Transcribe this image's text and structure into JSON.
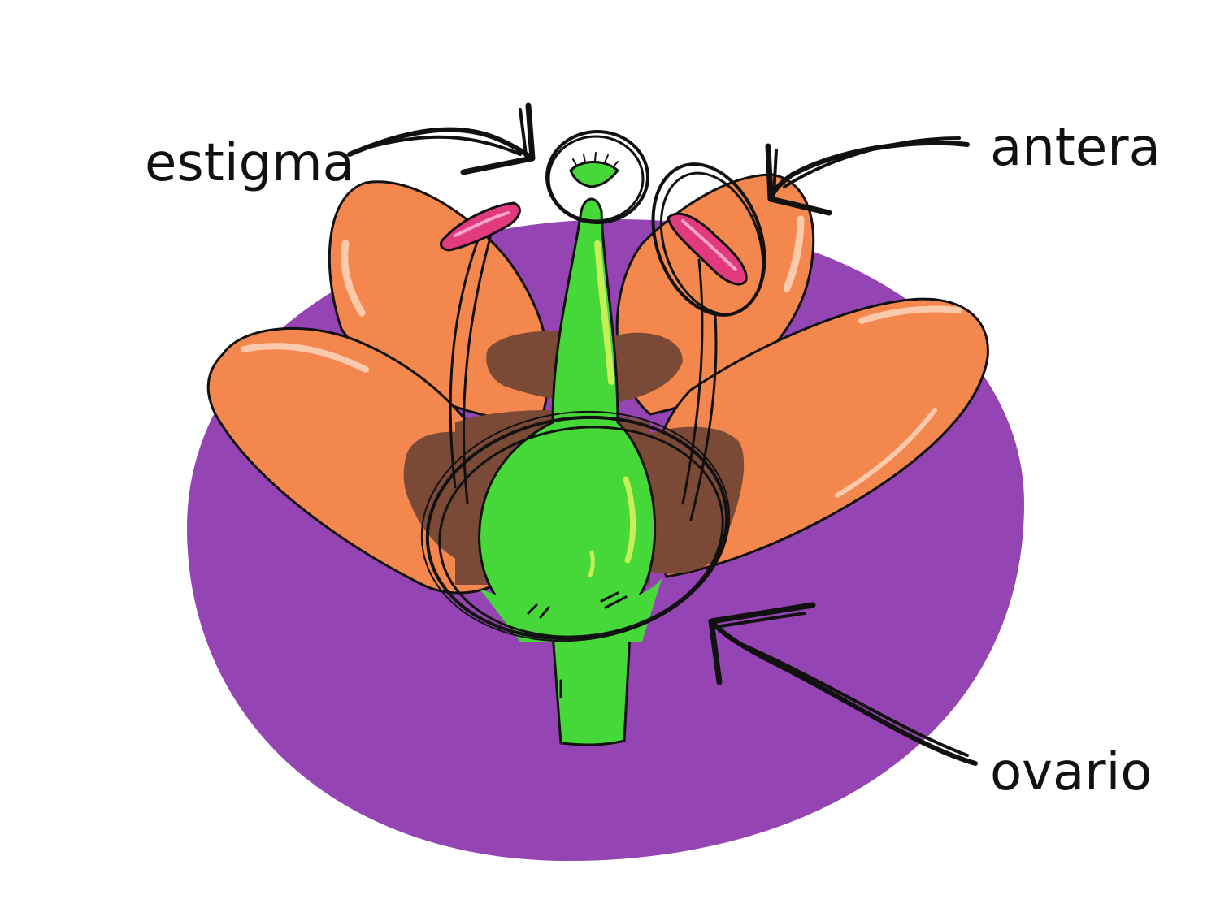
{
  "labels": {
    "stigma": "estigma",
    "anther": "antera",
    "ovary": "ovario"
  },
  "colors": {
    "background": "#ffffff",
    "disc": "#9445b3",
    "petal": "#f4874e",
    "petal_highlight": "#fbc9ab",
    "shadow": "#7a4a37",
    "pistil": "#46d838",
    "pistil_highlight": "#c8ef5a",
    "anther": "#e23a7f",
    "ink": "#111111"
  }
}
